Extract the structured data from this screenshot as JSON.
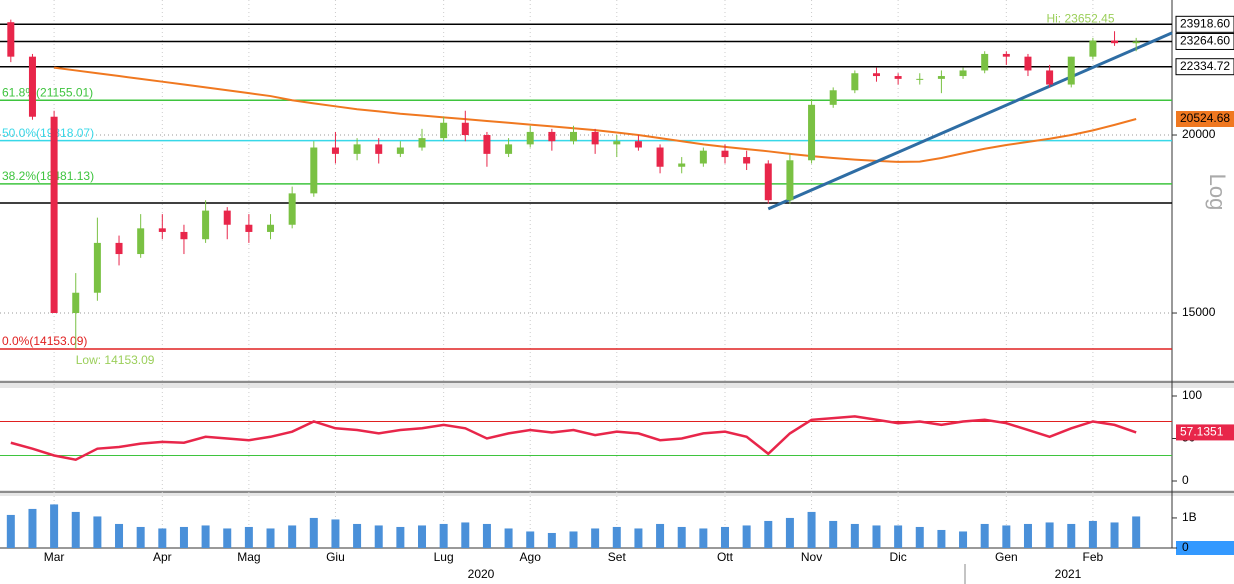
{
  "chart_data": [
    {
      "type": "candlestick",
      "log": true,
      "scale_label": "Log",
      "ylim": [
        13461,
        24877
      ],
      "yticks": [
        15000,
        20000
      ],
      "grid": true,
      "up_color": "#7ac143",
      "down_color": "#e8264a",
      "categories": [
        null,
        null,
        "Mar",
        null,
        null,
        null,
        null,
        "Apr",
        null,
        null,
        null,
        "Mag",
        null,
        null,
        null,
        "Giu",
        null,
        null,
        null,
        null,
        "Lug",
        null,
        null,
        null,
        "Ago",
        null,
        null,
        null,
        "Set",
        null,
        null,
        null,
        null,
        "Ott",
        null,
        null,
        null,
        "Nov",
        null,
        null,
        null,
        "Dic",
        null,
        null,
        null,
        null,
        "Gen",
        null,
        null,
        null,
        "Feb",
        null,
        null
      ],
      "year_labels": [
        "2020",
        "2021"
      ],
      "ohlc": [
        [
          24000,
          24100,
          22500,
          22700
        ],
        [
          22700,
          22800,
          20500,
          20600
        ],
        [
          20600,
          20800,
          15000,
          15000
        ],
        [
          15000,
          16000,
          14153.09,
          15500
        ],
        [
          15500,
          17500,
          15300,
          16800
        ],
        [
          16800,
          17000,
          16200,
          16500
        ],
        [
          16500,
          17600,
          16400,
          17200
        ],
        [
          17200,
          17600,
          16900,
          17100
        ],
        [
          17100,
          17300,
          16500,
          16900
        ],
        [
          16900,
          18000,
          16800,
          17700
        ],
        [
          17700,
          17800,
          16900,
          17300
        ],
        [
          17300,
          17600,
          16800,
          17100
        ],
        [
          17100,
          17600,
          16900,
          17300
        ],
        [
          17300,
          18400,
          17200,
          18200
        ],
        [
          18200,
          19800,
          18100,
          19600
        ],
        [
          19600,
          20100,
          19100,
          19400
        ],
        [
          19400,
          19900,
          19200,
          19700
        ],
        [
          19700,
          19900,
          19100,
          19400
        ],
        [
          19400,
          19800,
          19300,
          19600
        ],
        [
          19600,
          20200,
          19500,
          19900
        ],
        [
          19900,
          20600,
          19800,
          20400
        ],
        [
          20400,
          20800,
          19800,
          20000
        ],
        [
          20000,
          20100,
          19000,
          19400
        ],
        [
          19400,
          19900,
          19300,
          19700
        ],
        [
          19700,
          20300,
          19600,
          20100
        ],
        [
          20100,
          20200,
          19500,
          19800
        ],
        [
          19800,
          20300,
          19700,
          20100
        ],
        [
          20100,
          20200,
          19400,
          19700
        ],
        [
          19700,
          20000,
          19300,
          19800
        ],
        [
          19800,
          20000,
          19500,
          19600
        ],
        [
          19600,
          19700,
          18800,
          19000
        ],
        [
          19000,
          19300,
          18800,
          19100
        ],
        [
          19100,
          19600,
          19000,
          19500
        ],
        [
          19500,
          19700,
          19100,
          19300
        ],
        [
          19300,
          19500,
          18900,
          19100
        ],
        [
          19100,
          19200,
          17900,
          18000
        ],
        [
          18000,
          19400,
          17900,
          19200
        ],
        [
          19200,
          21200,
          19100,
          21000
        ],
        [
          21000,
          21600,
          20900,
          21500
        ],
        [
          21500,
          22200,
          21400,
          22100
        ],
        [
          22100,
          22300,
          21800,
          22000
        ],
        [
          22000,
          22100,
          21700,
          21900
        ],
        [
          21900,
          22100,
          21700,
          21900
        ],
        [
          21900,
          22200,
          21400,
          22000
        ],
        [
          22000,
          22300,
          21900,
          22200
        ],
        [
          22200,
          22900,
          22100,
          22800
        ],
        [
          22800,
          22900,
          22400,
          22700
        ],
        [
          22700,
          22800,
          22000,
          22200
        ],
        [
          22200,
          22400,
          21600,
          21700
        ],
        [
          21700,
          22700,
          21600,
          22700
        ],
        [
          22700,
          23400,
          22600,
          23300
        ],
        [
          23300,
          23652.45,
          23100,
          23200
        ],
        [
          23200,
          23400,
          22900,
          23264.6
        ]
      ],
      "ma": {
        "color": "#f07820",
        "end_label": "20524.68",
        "values": [
          null,
          null,
          22300,
          22200,
          22100,
          22000,
          21900,
          21800,
          21700,
          21600,
          21500,
          21400,
          21300,
          21155,
          21050,
          20950,
          20850,
          20780,
          20700,
          20640,
          20580,
          20520,
          20460,
          20400,
          20340,
          20280,
          20220,
          20160,
          20080,
          20000,
          19900,
          19800,
          19700,
          19620,
          19550,
          19480,
          19400,
          19330,
          19270,
          19220,
          19180,
          19150,
          19160,
          19270,
          19420,
          19560,
          19680,
          19780,
          19880,
          20000,
          20150,
          20330,
          20524.68
        ]
      },
      "trendline": {
        "color": "#2e6da4",
        "x": [
          35,
          52
        ],
        "y": [
          17750,
          23000
        ]
      },
      "levels": [
        {
          "value": 23918.6,
          "label": "23918.60",
          "color": "#000000"
        },
        {
          "value": 23264.6,
          "label": "23264.60",
          "color": "#000000"
        },
        {
          "value": 22334.72,
          "label": "22334.72",
          "color": "#000000"
        },
        {
          "value": 17918,
          "color": "#000000"
        },
        {
          "value": 21155.01,
          "label": "61.8%(21155.01)",
          "color": "#3ec43e"
        },
        {
          "value": 19818.07,
          "label": "50.0%(19818.07)",
          "color": "#38d8e8"
        },
        {
          "value": 18481.13,
          "label": "38.2%(18481.13)",
          "color": "#3ec43e"
        },
        {
          "value": 14153.09,
          "label": "0.0%(14153.09)",
          "color": "#e02020"
        }
      ],
      "annotations": [
        {
          "label": "Hi: 23652.45",
          "value": 23652.45,
          "index": 51
        },
        {
          "label": "Low: 14153.09",
          "value": 14153.09,
          "index": 3
        }
      ]
    },
    {
      "type": "line",
      "color": "#e8264a",
      "ylim": [
        -10.6,
        109.4
      ],
      "yticks": [
        0,
        50,
        100
      ],
      "end_label": "57.1351",
      "bands": [
        {
          "value": 70,
          "color": "#e02020"
        },
        {
          "value": 30,
          "color": "#3ec43e"
        }
      ],
      "values": [
        45,
        38,
        30,
        25,
        38,
        40,
        44,
        46,
        45,
        52,
        50,
        48,
        52,
        58,
        70,
        62,
        60,
        56,
        60,
        62,
        66,
        62,
        50,
        56,
        60,
        57,
        60,
        54,
        58,
        56,
        48,
        50,
        56,
        58,
        52,
        32,
        56,
        72,
        74,
        76,
        72,
        68,
        70,
        66,
        70,
        72,
        68,
        60,
        52,
        62,
        70,
        66,
        57.1351
      ]
    },
    {
      "type": "bar",
      "color": "#4a90d9",
      "ylim": [
        0,
        1730000000
      ],
      "yticks": [
        0,
        {
          "value": 1000000000,
          "label": "1B"
        }
      ],
      "values": [
        1100000000,
        1300000000,
        1450000000,
        1200000000,
        1050000000,
        800000000,
        700000000,
        650000000,
        700000000,
        750000000,
        650000000,
        700000000,
        650000000,
        750000000,
        1000000000,
        950000000,
        800000000,
        750000000,
        700000000,
        750000000,
        800000000,
        850000000,
        800000000,
        650000000,
        550000000,
        500000000,
        550000000,
        650000000,
        700000000,
        650000000,
        800000000,
        700000000,
        650000000,
        700000000,
        750000000,
        900000000,
        1000000000,
        1200000000,
        900000000,
        800000000,
        750000000,
        750000000,
        700000000,
        600000000,
        550000000,
        800000000,
        750000000,
        800000000,
        850000000,
        800000000,
        900000000,
        850000000,
        1050000000
      ]
    }
  ]
}
